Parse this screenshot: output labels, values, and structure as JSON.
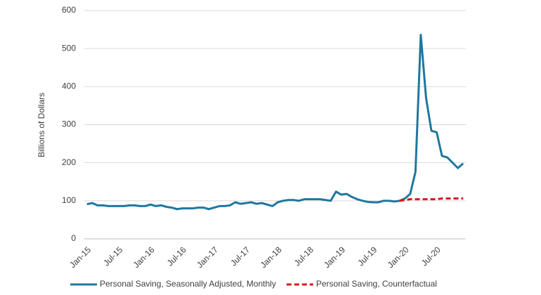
{
  "chart_data": {
    "type": "line",
    "y_label": "Billions of Dollars",
    "categories": [
      "Jan-15",
      null,
      null,
      null,
      null,
      null,
      "Jul-15",
      null,
      null,
      null,
      null,
      null,
      "Jan-16",
      null,
      null,
      null,
      null,
      null,
      "Jul-16",
      null,
      null,
      null,
      null,
      null,
      "Jan-17",
      null,
      null,
      null,
      null,
      null,
      "Jul-17",
      null,
      null,
      null,
      null,
      null,
      "Jan-18",
      null,
      null,
      null,
      null,
      null,
      "Jul-18",
      null,
      null,
      null,
      null,
      null,
      "Jan-19",
      null,
      null,
      null,
      null,
      null,
      "Jul-19",
      null,
      null,
      null,
      null,
      null,
      "Jan-20",
      null,
      null,
      null,
      null,
      null,
      "Jul-20",
      null,
      null,
      null,
      null,
      null
    ],
    "series": [
      {
        "name": "Personal Saving, Seasonally Adjusted, Monthly",
        "color": "#1f77a0",
        "dash": false,
        "values": [
          91,
          94,
          88,
          88,
          86,
          86,
          86,
          86,
          88,
          88,
          86,
          86,
          90,
          86,
          88,
          84,
          82,
          78,
          80,
          80,
          80,
          82,
          82,
          78,
          82,
          86,
          86,
          88,
          96,
          92,
          94,
          96,
          92,
          94,
          90,
          86,
          96,
          100,
          102,
          102,
          100,
          104,
          104,
          104,
          104,
          102,
          100,
          124,
          116,
          118,
          110,
          104,
          100,
          97,
          96,
          96,
          100,
          100,
          98,
          100,
          106,
          118,
          176,
          536,
          370,
          284,
          280,
          218,
          214,
          200,
          186,
          198
        ]
      },
      {
        "name": "Personal Saving, Counterfactual",
        "color": "#d7191c",
        "dash": true,
        "values": [
          null,
          null,
          null,
          null,
          null,
          null,
          null,
          null,
          null,
          null,
          null,
          null,
          null,
          null,
          null,
          null,
          null,
          null,
          null,
          null,
          null,
          null,
          null,
          null,
          null,
          null,
          null,
          null,
          null,
          null,
          null,
          null,
          null,
          null,
          null,
          null,
          null,
          null,
          null,
          null,
          null,
          null,
          null,
          null,
          null,
          null,
          null,
          null,
          null,
          null,
          null,
          null,
          null,
          null,
          null,
          null,
          null,
          null,
          null,
          100,
          102,
          104,
          104,
          104,
          104,
          104,
          104,
          106,
          106,
          106,
          106,
          106
        ]
      }
    ],
    "ylim": [
      0,
      600
    ],
    "yticks": [
      0,
      100,
      200,
      300,
      400,
      500,
      600
    ],
    "grid": true
  }
}
